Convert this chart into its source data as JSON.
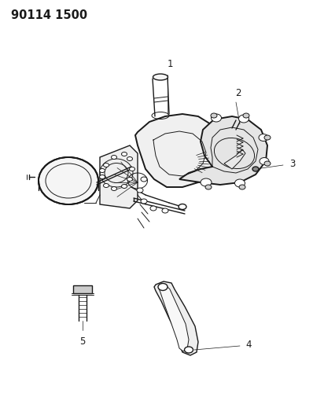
{
  "title_code": "90114 1500",
  "bg_color": "#ffffff",
  "line_color": "#1a1a1a",
  "title_fontsize": 10.5,
  "title_fontweight": "bold",
  "label_fontsize": 8.5,
  "figsize": [
    3.98,
    5.33
  ],
  "dpi": 100,
  "image_extent": [
    0,
    398,
    0,
    533
  ]
}
